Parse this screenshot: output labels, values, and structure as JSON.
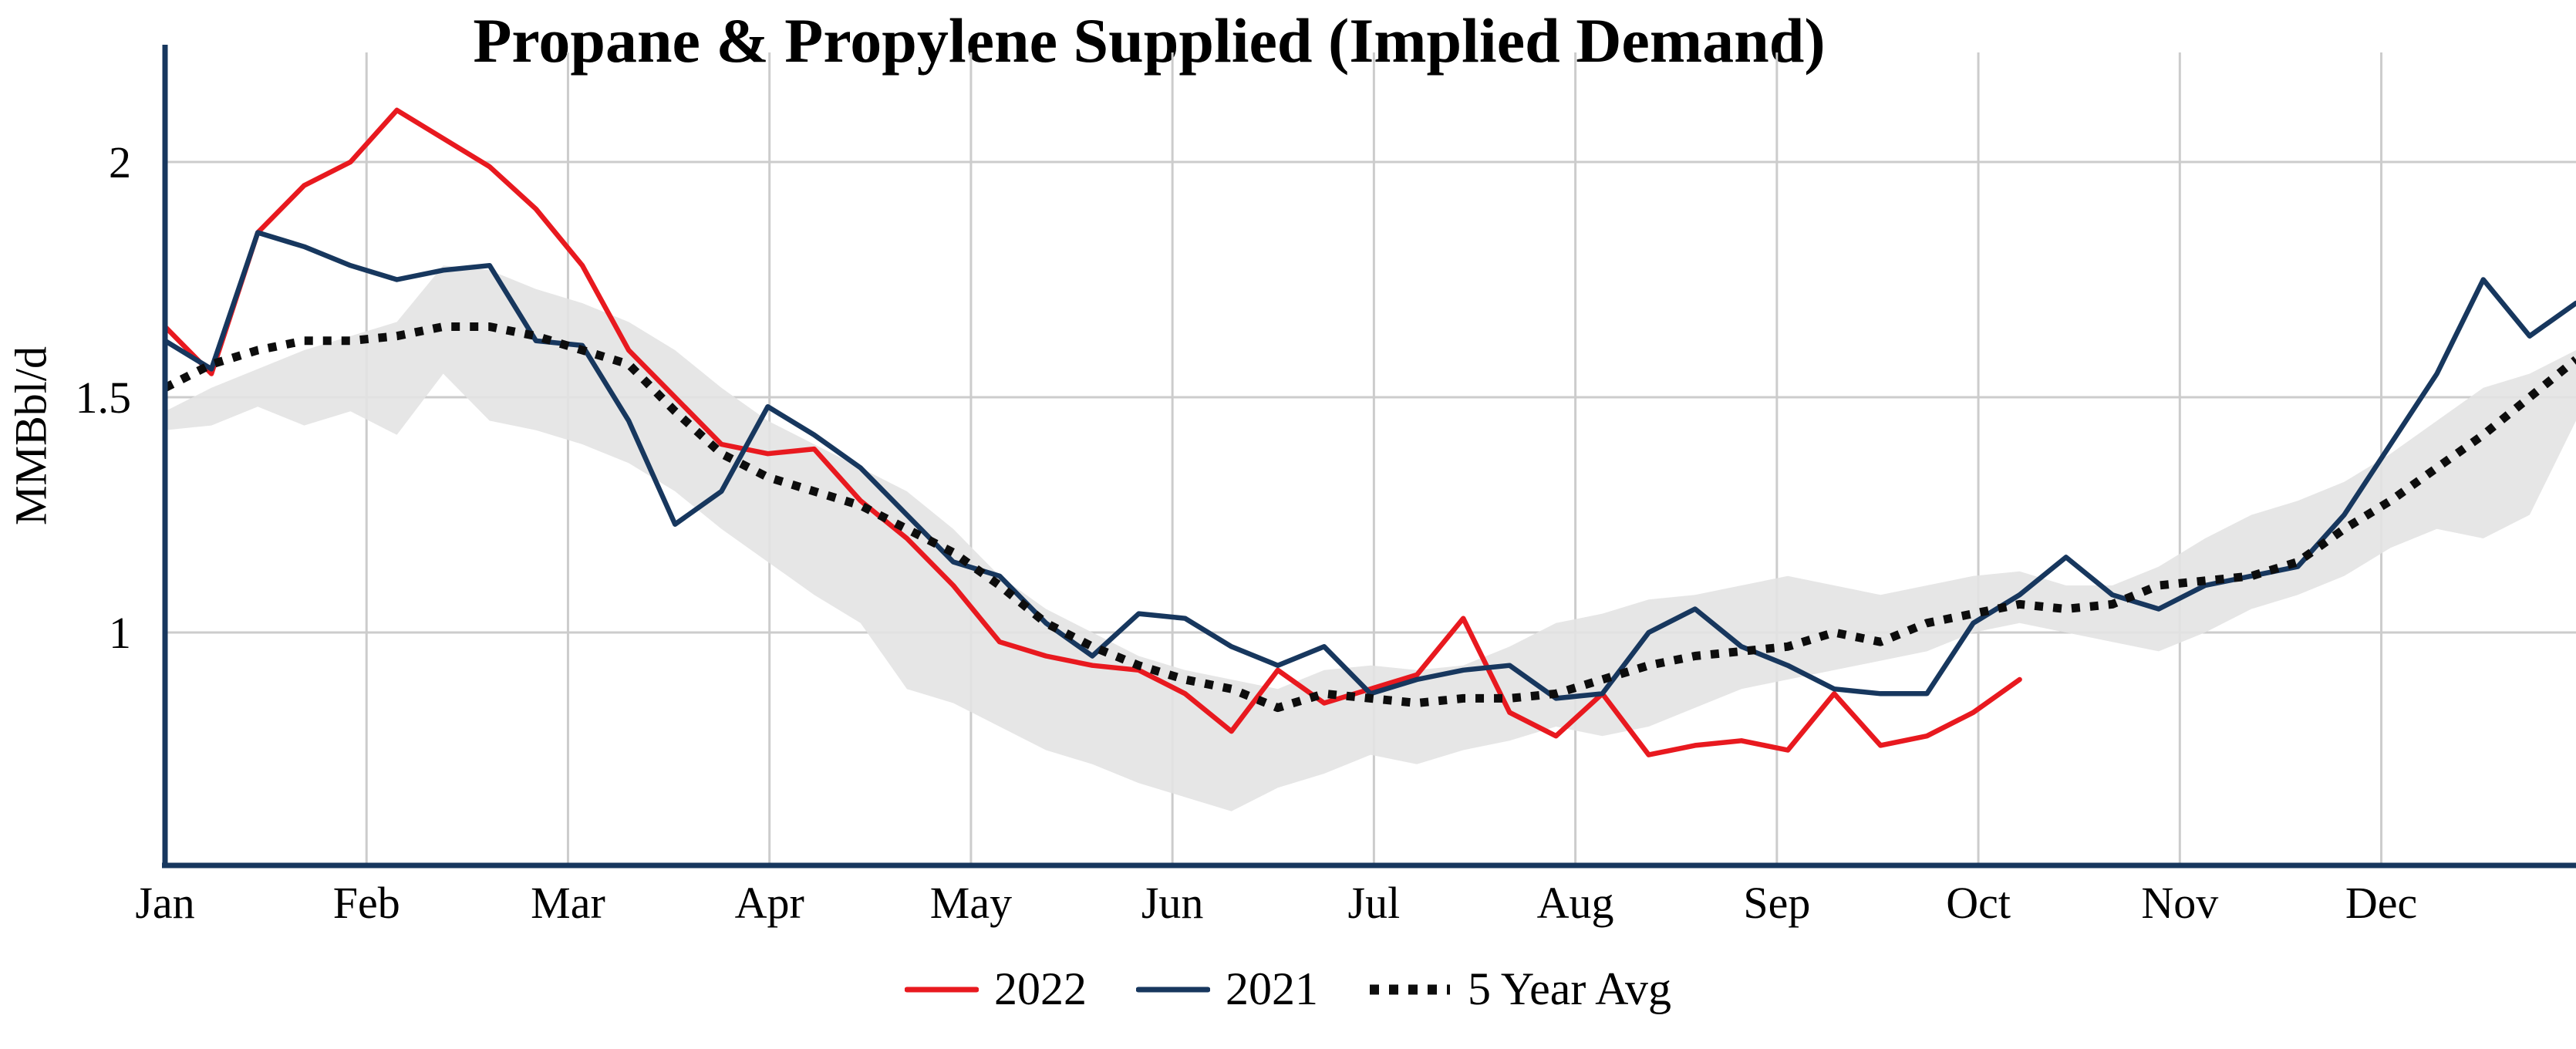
{
  "title": "Propane & Propylene Supplied (Implied Demand)",
  "y_axis": {
    "label": "MMBbl/d",
    "ticks": [
      "2",
      "1.5",
      "1"
    ],
    "tick_values": [
      2,
      1.5,
      1
    ]
  },
  "x_axis": {
    "months": [
      "Jan",
      "Feb",
      "Mar",
      "Apr",
      "May",
      "Jun",
      "Jul",
      "Aug",
      "Sep",
      "Oct",
      "Nov",
      "Dec"
    ]
  },
  "colors": {
    "axis": "#17375e",
    "grid": "#cccccc",
    "band_fill": "#e3e3e3",
    "red_2022": "#e8191f",
    "navy_2021": "#17375e",
    "avg_dotted": "#0d0d0d"
  },
  "chart_data": {
    "type": "line",
    "title": "Propane & Propylene Supplied (Implied Demand)",
    "xlabel": "",
    "ylabel": "MMBbl/d",
    "x_unit": "week-of-year",
    "ylim": [
      0.5,
      2.2
    ],
    "grid": true,
    "legend_position": "bottom-center",
    "months": [
      "Jan",
      "Feb",
      "Mar",
      "Apr",
      "May",
      "Jun",
      "Jul",
      "Aug",
      "Sep",
      "Oct",
      "Nov",
      "Dec"
    ],
    "series": [
      {
        "name": "2022",
        "color": "#e8191f",
        "style": "solid",
        "values": [
          1.65,
          1.55,
          1.85,
          1.95,
          2.0,
          2.11,
          2.05,
          1.99,
          1.9,
          1.78,
          1.6,
          1.5,
          1.4,
          1.38,
          1.39,
          1.28,
          1.2,
          1.1,
          0.98,
          0.95,
          0.93,
          0.92,
          0.87,
          0.79,
          0.92,
          0.85,
          0.88,
          0.91,
          1.03,
          0.83,
          0.78,
          0.87,
          0.74,
          0.76,
          0.77,
          0.75,
          0.87,
          0.76,
          0.78,
          0.83,
          0.9
        ]
      },
      {
        "name": "2021",
        "color": "#17375e",
        "style": "solid",
        "values": [
          1.62,
          1.56,
          1.85,
          1.82,
          1.78,
          1.75,
          1.77,
          1.78,
          1.62,
          1.61,
          1.45,
          1.23,
          1.3,
          1.48,
          1.42,
          1.35,
          1.25,
          1.15,
          1.12,
          1.02,
          0.95,
          1.04,
          1.03,
          0.97,
          0.93,
          0.97,
          0.87,
          0.9,
          0.92,
          0.93,
          0.86,
          0.87,
          1.0,
          1.05,
          0.97,
          0.93,
          0.88,
          0.87,
          0.87,
          1.02,
          1.08,
          1.16,
          1.08,
          1.05,
          1.1,
          1.12,
          1.14,
          1.25,
          1.4,
          1.55,
          1.75,
          1.63,
          1.7
        ]
      },
      {
        "name": "5 Year Avg",
        "color": "#0d0d0d",
        "style": "dotted",
        "values": [
          1.52,
          1.57,
          1.6,
          1.62,
          1.62,
          1.63,
          1.65,
          1.65,
          1.63,
          1.6,
          1.57,
          1.47,
          1.38,
          1.33,
          1.3,
          1.27,
          1.22,
          1.17,
          1.1,
          1.02,
          0.97,
          0.93,
          0.9,
          0.88,
          0.84,
          0.87,
          0.86,
          0.85,
          0.86,
          0.86,
          0.87,
          0.9,
          0.93,
          0.95,
          0.96,
          0.97,
          1.0,
          0.98,
          1.02,
          1.04,
          1.06,
          1.05,
          1.06,
          1.1,
          1.11,
          1.12,
          1.15,
          1.22,
          1.28,
          1.35,
          1.42,
          1.5,
          1.58
        ]
      }
    ],
    "band": {
      "name": "5 Year Range",
      "fill": "#e3e3e3",
      "upper": [
        1.47,
        1.52,
        1.56,
        1.6,
        1.63,
        1.66,
        1.78,
        1.77,
        1.73,
        1.7,
        1.66,
        1.6,
        1.52,
        1.45,
        1.4,
        1.35,
        1.3,
        1.22,
        1.12,
        1.05,
        1.0,
        0.95,
        0.92,
        0.9,
        0.88,
        0.92,
        0.93,
        0.92,
        0.93,
        0.97,
        1.02,
        1.04,
        1.07,
        1.08,
        1.1,
        1.12,
        1.1,
        1.08,
        1.1,
        1.12,
        1.13,
        1.1,
        1.1,
        1.14,
        1.2,
        1.25,
        1.28,
        1.32,
        1.38,
        1.45,
        1.52,
        1.55,
        1.6
      ],
      "lower": [
        1.43,
        1.44,
        1.48,
        1.44,
        1.47,
        1.42,
        1.55,
        1.45,
        1.43,
        1.4,
        1.36,
        1.3,
        1.22,
        1.15,
        1.08,
        1.02,
        0.88,
        0.85,
        0.8,
        0.75,
        0.72,
        0.68,
        0.65,
        0.62,
        0.67,
        0.7,
        0.74,
        0.72,
        0.75,
        0.77,
        0.8,
        0.78,
        0.8,
        0.84,
        0.88,
        0.9,
        0.92,
        0.94,
        0.96,
        1.0,
        1.02,
        1.0,
        0.98,
        0.96,
        1.0,
        1.05,
        1.08,
        1.12,
        1.18,
        1.22,
        1.2,
        1.25,
        1.45
      ]
    }
  },
  "legend": {
    "items": [
      {
        "label": "2022"
      },
      {
        "label": "2021"
      },
      {
        "label": "5 Year Avg"
      }
    ]
  }
}
